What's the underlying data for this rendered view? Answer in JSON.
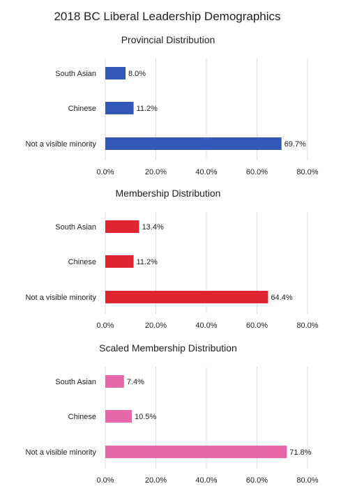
{
  "title": "2018 BC Liberal Leadership Demographics",
  "chart_data": [
    {
      "type": "bar",
      "orientation": "horizontal",
      "title": "Provincial Distribution",
      "categories": [
        "South Asian",
        "Chinese",
        "Not a visible minority"
      ],
      "values": [
        8.0,
        11.2,
        69.7
      ],
      "value_labels": [
        "8.0%",
        "11.2%",
        "69.7%"
      ],
      "xlim": [
        0,
        80
      ],
      "x_ticks": [
        "0.0%",
        "20.0%",
        "40.0%",
        "60.0%",
        "80.0%"
      ],
      "grid": true,
      "color": "#3358b8"
    },
    {
      "type": "bar",
      "orientation": "horizontal",
      "title": "Membership Distribution",
      "categories": [
        "South Asian",
        "Chinese",
        "Not a visible minority"
      ],
      "values": [
        13.4,
        11.2,
        64.4
      ],
      "value_labels": [
        "13.4%",
        "11.2%",
        "64.4%"
      ],
      "xlim": [
        0,
        80
      ],
      "x_ticks": [
        "0.0%",
        "20.0%",
        "40.0%",
        "60.0%",
        "80.0%"
      ],
      "grid": true,
      "color": "#e02532"
    },
    {
      "type": "bar",
      "orientation": "horizontal",
      "title": "Scaled Membership Distribution",
      "categories": [
        "South Asian",
        "Chinese",
        "Not a visible minority"
      ],
      "values": [
        7.4,
        10.5,
        71.8
      ],
      "value_labels": [
        "7.4%",
        "10.5%",
        "71.8%"
      ],
      "xlim": [
        0,
        80
      ],
      "x_ticks": [
        "0.0%",
        "20.0%",
        "40.0%",
        "60.0%",
        "80.0%"
      ],
      "grid": true,
      "color": "#e766a8"
    }
  ]
}
